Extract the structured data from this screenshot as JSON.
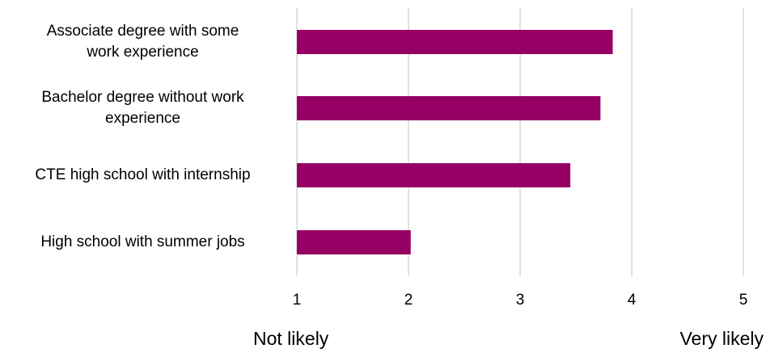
{
  "chart_data": {
    "type": "bar",
    "orientation": "horizontal",
    "categories": [
      "Associate degree with some work experience",
      "Bachelor degree without work experience",
      "CTE high school with internship",
      "High school with summer jobs"
    ],
    "values": [
      3.83,
      3.72,
      3.45,
      2.02
    ],
    "xlim": [
      1,
      5
    ],
    "xticks": [
      "1",
      "2",
      "3",
      "4",
      "5"
    ],
    "grid": true,
    "legend": "none",
    "colors": {
      "bar": "#960064",
      "grid": "#d9d9d9"
    },
    "anchors": {
      "low": "Not likely",
      "high": "Very likely"
    }
  }
}
